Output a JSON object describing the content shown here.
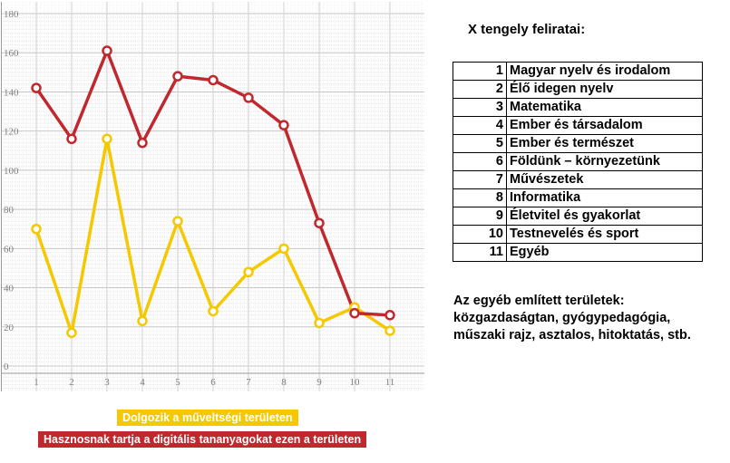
{
  "chart_data": {
    "type": "line",
    "categories": [
      "1",
      "2",
      "3",
      "4",
      "5",
      "6",
      "7",
      "8",
      "9",
      "10",
      "11"
    ],
    "ylim": [
      0,
      180
    ],
    "yticks": [
      "0",
      "20",
      "40",
      "60",
      "80",
      "100",
      "120",
      "140",
      "160",
      "180"
    ],
    "grid": true,
    "legend_position": "bottom",
    "series": [
      {
        "name": "Dolgozik a műveltségi területen",
        "color": "#f5c800",
        "values": [
          70,
          17,
          116,
          23,
          74,
          28,
          48,
          60,
          22,
          30,
          18
        ]
      },
      {
        "name": "Hasznosnak tartja a digitális tananyagokat ezen a területen",
        "color": "#c0282e",
        "values": [
          142,
          116,
          161,
          114,
          148,
          146,
          137,
          123,
          73,
          27,
          26
        ]
      }
    ]
  },
  "category_table": {
    "title": "X tengely feliratai:",
    "rows": [
      {
        "num": "1",
        "name": "Magyar nyelv és irodalom"
      },
      {
        "num": "2",
        "name": "Élő idegen nyelv"
      },
      {
        "num": "3",
        "name": "Matematika"
      },
      {
        "num": "4",
        "name": "Ember és társadalom"
      },
      {
        "num": "5",
        "name": "Ember és természet"
      },
      {
        "num": "6",
        "name": "Földünk – környezetünk"
      },
      {
        "num": "7",
        "name": "Művészetek"
      },
      {
        "num": "8",
        "name": "Informatika"
      },
      {
        "num": "9",
        "name": "Életvitel és gyakorlat"
      },
      {
        "num": "10",
        "name": "Testnevelés és sport"
      },
      {
        "num": "11",
        "name": "Egyéb"
      }
    ]
  },
  "note": {
    "lines": [
      "Az egyéb említett területek:",
      "közgazdaságtan, gyógypedagógia,",
      "műszaki rajz, asztalos, hitoktatás, stb."
    ]
  }
}
